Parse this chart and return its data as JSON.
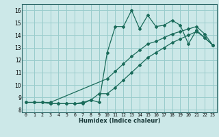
{
  "bg_color": "#cce8e8",
  "grid_color": "#99cccc",
  "line_color": "#1a6b5a",
  "xlabel": "Humidex (Indice chaleur)",
  "xlim": [
    -0.5,
    23.5
  ],
  "ylim": [
    7.8,
    16.5
  ],
  "yticks": [
    8,
    9,
    10,
    11,
    12,
    13,
    14,
    15,
    16
  ],
  "xticks": [
    0,
    1,
    2,
    3,
    4,
    5,
    6,
    7,
    8,
    9,
    10,
    11,
    12,
    13,
    14,
    15,
    16,
    17,
    18,
    19,
    20,
    21,
    22,
    23
  ],
  "series": [
    {
      "x": [
        0,
        1,
        2,
        3,
        4,
        5,
        6,
        7,
        8,
        9,
        10,
        11,
        12,
        13,
        14,
        15,
        16,
        17,
        18,
        19,
        20,
        21,
        22,
        23
      ],
      "y": [
        8.6,
        8.6,
        8.6,
        8.5,
        8.5,
        8.5,
        8.5,
        8.6,
        8.8,
        8.6,
        12.6,
        14.7,
        14.7,
        16.0,
        14.5,
        15.6,
        14.7,
        14.8,
        15.2,
        14.8,
        13.3,
        14.4,
        13.8,
        13.2
      ]
    },
    {
      "x": [
        0,
        1,
        2,
        3,
        10,
        11,
        12,
        13,
        14,
        15,
        16,
        17,
        18,
        19,
        20,
        21,
        22,
        23
      ],
      "y": [
        8.6,
        8.6,
        8.6,
        8.6,
        10.5,
        11.1,
        11.7,
        12.3,
        12.8,
        13.3,
        13.5,
        13.8,
        14.1,
        14.3,
        14.5,
        14.7,
        14.1,
        13.2
      ]
    },
    {
      "x": [
        3,
        4,
        5,
        6,
        7,
        8,
        9,
        10,
        11,
        12,
        13,
        14,
        15,
        16,
        17,
        18,
        19,
        20,
        21,
        22,
        23
      ],
      "y": [
        8.5,
        8.5,
        8.5,
        8.5,
        8.5,
        8.8,
        9.3,
        9.3,
        9.8,
        10.4,
        11.0,
        11.6,
        12.2,
        12.6,
        13.0,
        13.4,
        13.7,
        14.0,
        14.3,
        13.8,
        13.2
      ]
    }
  ]
}
